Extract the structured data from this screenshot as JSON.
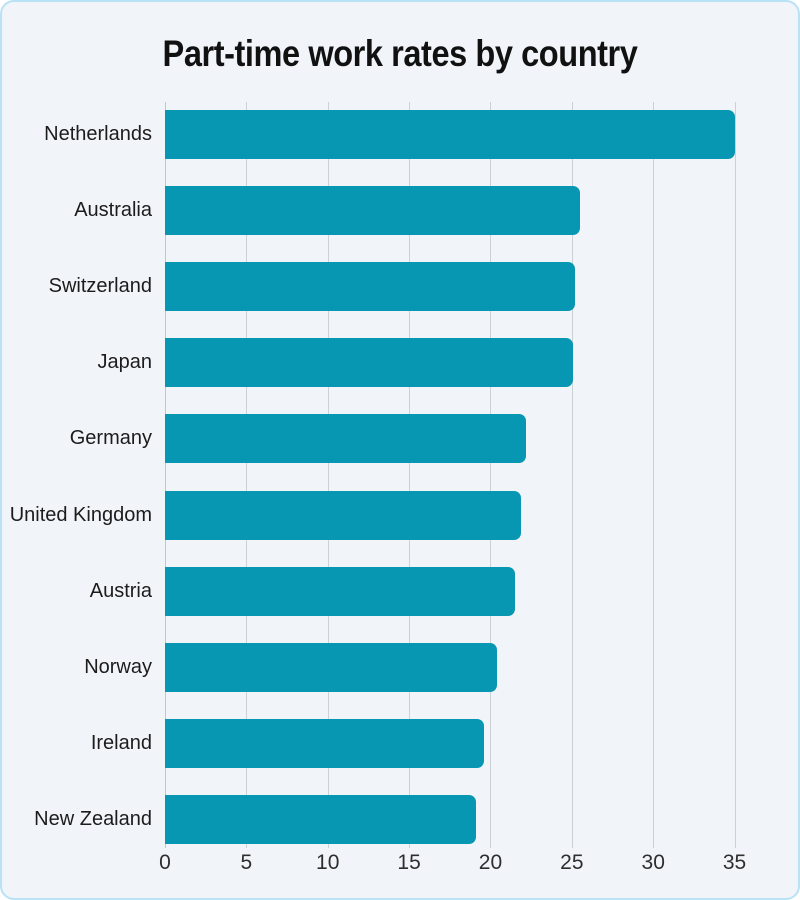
{
  "title": "Part-time work rates by country",
  "colors": {
    "bar": "#0897b2",
    "card_background": "#f1f5fa",
    "card_border": "#b9e2f5",
    "gridline": "#ccd1d6",
    "title_text": "#111111",
    "label_text": "#1c1c1c",
    "tick_text": "#2e2e2e"
  },
  "chart_data": {
    "type": "bar",
    "orientation": "horizontal",
    "title": "Part-time work rates by country",
    "xlabel": "",
    "ylabel": "",
    "categories": [
      "Netherlands",
      "Australia",
      "Switzerland",
      "Japan",
      "Germany",
      "United Kingdom",
      "Austria",
      "Norway",
      "Ireland",
      "New Zealand"
    ],
    "values": [
      35.0,
      25.5,
      25.2,
      25.1,
      22.2,
      21.9,
      21.5,
      20.4,
      19.6,
      19.1
    ],
    "xticks": [
      0,
      5,
      10,
      15,
      20,
      25,
      30,
      35
    ],
    "xlim": [
      0,
      37.3
    ],
    "grid": "vertical-only",
    "legend": "none",
    "bar_color": "#0897b2"
  }
}
